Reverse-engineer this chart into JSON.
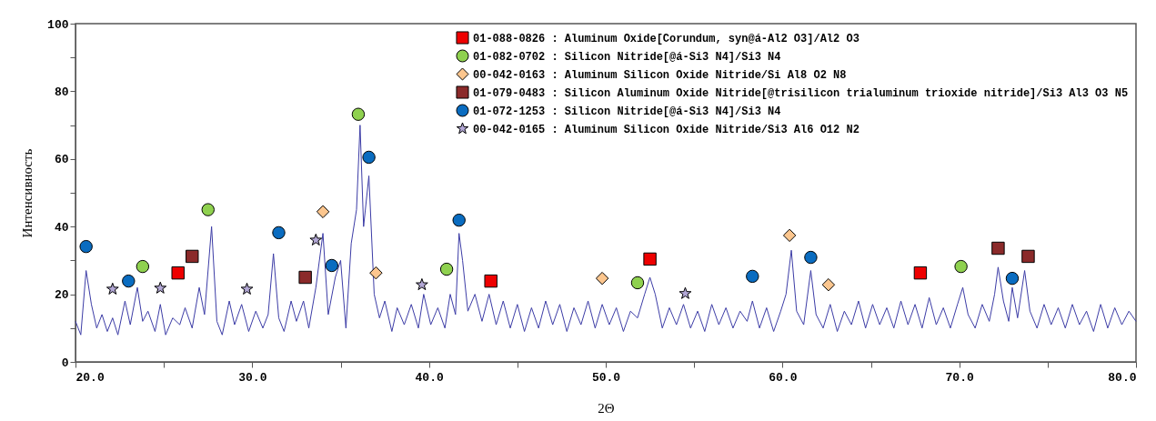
{
  "chart_data": {
    "type": "scatter",
    "xlabel": "2Θ",
    "ylabel": "Интенсивность",
    "xlim": [
      20,
      80
    ],
    "ylim": [
      0,
      100
    ],
    "xticks": [
      {
        "value": 20,
        "label": "20.0"
      },
      {
        "value": 25,
        "label": null
      },
      {
        "value": 30,
        "label": "30.0"
      },
      {
        "value": 35,
        "label": null
      },
      {
        "value": 40,
        "label": "40.0"
      },
      {
        "value": 45,
        "label": null
      },
      {
        "value": 50,
        "label": "50.0"
      },
      {
        "value": 55,
        "label": null
      },
      {
        "value": 60,
        "label": "60.0"
      },
      {
        "value": 65,
        "label": null
      },
      {
        "value": 70,
        "label": "70.0"
      },
      {
        "value": 75,
        "label": null
      },
      {
        "value": 80,
        "label": "80.0"
      }
    ],
    "yticks": [
      0,
      {
        "value": 10,
        "label": null
      },
      20,
      {
        "value": 30,
        "label": null
      },
      40,
      {
        "value": 50,
        "label": null
      },
      60,
      {
        "value": 70,
        "label": null
      },
      80,
      {
        "value": 90,
        "label": null
      },
      100
    ],
    "grid": false,
    "legend": "top right",
    "series": [
      {
        "type": "line",
        "color": "#3c3ca6",
        "marker": "none",
        "line_style": "solid",
        "x": [
          20.0,
          20.3,
          20.6,
          20.9,
          21.2,
          21.5,
          21.8,
          22.1,
          22.4,
          22.8,
          23.1,
          23.5,
          23.8,
          24.1,
          24.5,
          24.8,
          25.1,
          25.5,
          25.9,
          26.2,
          26.6,
          27.0,
          27.3,
          27.7,
          28.0,
          28.3,
          28.7,
          29.0,
          29.4,
          29.8,
          30.2,
          30.6,
          30.9,
          31.2,
          31.5,
          31.8,
          32.2,
          32.5,
          32.9,
          33.2,
          33.6,
          34.0,
          34.3,
          34.7,
          35.0,
          35.3,
          35.6,
          35.9,
          36.1,
          36.3,
          36.6,
          36.9,
          37.2,
          37.5,
          37.9,
          38.2,
          38.6,
          39.0,
          39.4,
          39.7,
          40.1,
          40.5,
          40.9,
          41.2,
          41.5,
          41.7,
          41.9,
          42.2,
          42.6,
          43.0,
          43.4,
          43.8,
          44.2,
          44.6,
          45.0,
          45.4,
          45.8,
          46.2,
          46.6,
          47.0,
          47.4,
          47.8,
          48.2,
          48.6,
          49.0,
          49.4,
          49.8,
          50.2,
          50.6,
          51.0,
          51.4,
          51.8,
          52.2,
          52.5,
          52.8,
          53.2,
          53.6,
          54.0,
          54.4,
          54.8,
          55.2,
          55.6,
          56.0,
          56.4,
          56.8,
          57.2,
          57.6,
          58.0,
          58.3,
          58.7,
          59.1,
          59.5,
          59.9,
          60.2,
          60.5,
          60.8,
          61.2,
          61.6,
          61.9,
          62.3,
          62.7,
          63.1,
          63.5,
          63.9,
          64.3,
          64.7,
          65.1,
          65.5,
          65.9,
          66.3,
          66.7,
          67.1,
          67.5,
          67.9,
          68.3,
          68.7,
          69.1,
          69.5,
          69.9,
          70.2,
          70.5,
          70.9,
          71.3,
          71.7,
          72.0,
          72.2,
          72.5,
          72.8,
          73.0,
          73.3,
          73.7,
          74.0,
          74.4,
          74.8,
          75.2,
          75.6,
          76.0,
          76.4,
          76.8,
          77.2,
          77.6,
          78.0,
          78.4,
          78.8,
          79.2,
          79.6,
          80.0
        ],
        "values": [
          12,
          8,
          27,
          17,
          10,
          14,
          9,
          13,
          8,
          18,
          11,
          22,
          12,
          15,
          9,
          17,
          8,
          13,
          11,
          16,
          10,
          22,
          14,
          40,
          12,
          8,
          18,
          11,
          17,
          9,
          15,
          10,
          14,
          32,
          13,
          9,
          18,
          12,
          18,
          10,
          22,
          38,
          14,
          25,
          30,
          10,
          35,
          45,
          70,
          40,
          55,
          20,
          13,
          18,
          9,
          16,
          11,
          17,
          10,
          20,
          11,
          16,
          10,
          20,
          14,
          38,
          30,
          15,
          20,
          12,
          20,
          11,
          18,
          10,
          17,
          9,
          16,
          10,
          18,
          11,
          17,
          9,
          16,
          11,
          18,
          10,
          17,
          11,
          16,
          9,
          15,
          13,
          20,
          25,
          20,
          10,
          16,
          11,
          17,
          10,
          15,
          9,
          17,
          11,
          16,
          10,
          15,
          12,
          18,
          10,
          16,
          9,
          15,
          20,
          33,
          15,
          11,
          27,
          14,
          10,
          17,
          9,
          15,
          11,
          18,
          10,
          17,
          11,
          16,
          10,
          18,
          11,
          17,
          10,
          19,
          11,
          16,
          10,
          17,
          22,
          14,
          10,
          17,
          12,
          20,
          28,
          18,
          12,
          22,
          13,
          27,
          15,
          10,
          17,
          11,
          16,
          10,
          17,
          11,
          15,
          9,
          17,
          10,
          16,
          11,
          15,
          12
        ]
      },
      {
        "name": "01-088-0826 : Aluminum Oxide[Corundum, syn@á-Al2 O3]/Al2 O3",
        "color": "#ee0000",
        "marker": "square",
        "x": [
          25.8,
          43.5,
          52.5,
          67.8
        ],
        "values": [
          26.3,
          23.9,
          30.4,
          26.3
        ]
      },
      {
        "name": "01-082-0702 : Silicon Nitride[@á-Si3 N4]/Si3 N4",
        "color": "#8fd14f",
        "marker": "circle",
        "x": [
          23.8,
          27.5,
          36.0,
          41.0,
          51.8,
          70.1
        ],
        "values": [
          28.2,
          45,
          73.2,
          27.4,
          23.4,
          28.2
        ]
      },
      {
        "name": "00-042-0163 : Aluminum Silicon Oxide Nitride/Si Al8 O2 N8",
        "color": "#fcc68e",
        "marker": "diamond",
        "x": [
          34.0,
          37.0,
          49.8,
          60.4,
          62.6
        ],
        "values": [
          44.4,
          26.3,
          24.7,
          37.4,
          22.8
        ]
      },
      {
        "name": "01-079-0483 : Silicon Aluminum Oxide Nitride[@trisilicon trialuminum trioxide nitride]/Si3 Al3 O3 N5",
        "color": "#8b2a2a",
        "marker": "square",
        "x": [
          26.6,
          33.0,
          72.2,
          73.9
        ],
        "values": [
          31.2,
          25.0,
          33.6,
          31.2
        ]
      },
      {
        "name": "01-072-1253 : Silicon Nitride[@á-Si3 N4]/Si3 N4",
        "color": "#0a6cc0",
        "marker": "circle",
        "x": [
          20.6,
          23.0,
          31.5,
          34.5,
          36.6,
          41.7,
          58.3,
          61.6,
          73.0
        ],
        "values": [
          34.1,
          23.9,
          38.2,
          28.5,
          60.5,
          41.9,
          25.3,
          30.9,
          24.7
        ]
      },
      {
        "name": "00-042-0165 : Aluminum Silicon Oxide Nitride/Si3 Al6 O12 N2",
        "color": "#b3a8d6",
        "marker": "star",
        "x": [
          22.1,
          24.8,
          29.7,
          33.6,
          39.6,
          54.5
        ],
        "values": [
          21.5,
          21.8,
          21.5,
          36.0,
          22.8,
          20.2
        ]
      }
    ]
  }
}
